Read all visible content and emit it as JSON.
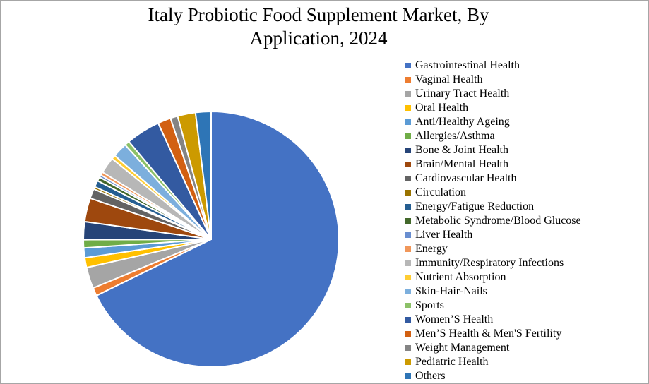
{
  "chart_data": {
    "type": "pie",
    "title": "Italy Probiotic Food Supplement Market, By\nApplication, 2024",
    "legend_position": "right",
    "slices": [
      {
        "label": "Gastrointestinal Health",
        "value": 65.7,
        "color": "#4472C4"
      },
      {
        "label": "Vaginal Health",
        "value": 1.0,
        "color": "#ED7D31"
      },
      {
        "label": "Urinary Tract Health",
        "value": 2.6,
        "color": "#A5A5A5"
      },
      {
        "label": "Oral Health",
        "value": 1.2,
        "color": "#FFC000"
      },
      {
        "label": "Anti/Healthy Ageing",
        "value": 1.2,
        "color": "#5B9BD5"
      },
      {
        "label": "Allergies/Asthma",
        "value": 1.0,
        "color": "#70AD47"
      },
      {
        "label": "Bone & Joint Health",
        "value": 2.2,
        "color": "#264478"
      },
      {
        "label": "Brain/Mental Health",
        "value": 2.9,
        "color": "#9E480E"
      },
      {
        "label": " Cardiovascular Health",
        "value": 1.2,
        "color": "#636363"
      },
      {
        "label": " Circulation",
        "value": 0.3,
        "color": "#997300"
      },
      {
        "label": " Energy/Fatigue Reduction",
        "value": 0.8,
        "color": "#255E91"
      },
      {
        "label": " Metabolic Syndrome/Blood Glucose",
        "value": 0.5,
        "color": "#43682B"
      },
      {
        "label": " Liver Health",
        "value": 0.3,
        "color": "#698ED0"
      },
      {
        "label": " Energy",
        "value": 0.4,
        "color": "#F1975A"
      },
      {
        "label": "Immunity/Respiratory Infections",
        "value": 2.0,
        "color": "#B7B7B7"
      },
      {
        "label": "Nutrient Absorption",
        "value": 0.5,
        "color": "#FFCD33"
      },
      {
        "label": "Skin-Hair-Nails",
        "value": 1.8,
        "color": "#7CAFDD"
      },
      {
        "label": "Sports",
        "value": 0.6,
        "color": "#8CC168"
      },
      {
        "label": "Women’S Health",
        "value": 4.2,
        "color": "#335AA1"
      },
      {
        "label": "Men’S Health & Men'S Fertility",
        "value": 1.6,
        "color": "#D26012"
      },
      {
        "label": "Weight Management",
        "value": 0.9,
        "color": "#848484"
      },
      {
        "label": "Pediatric Health",
        "value": 2.2,
        "color": "#CC9A00"
      },
      {
        "label": "Others",
        "value": 1.9,
        "color": "#2E75B6"
      }
    ]
  }
}
